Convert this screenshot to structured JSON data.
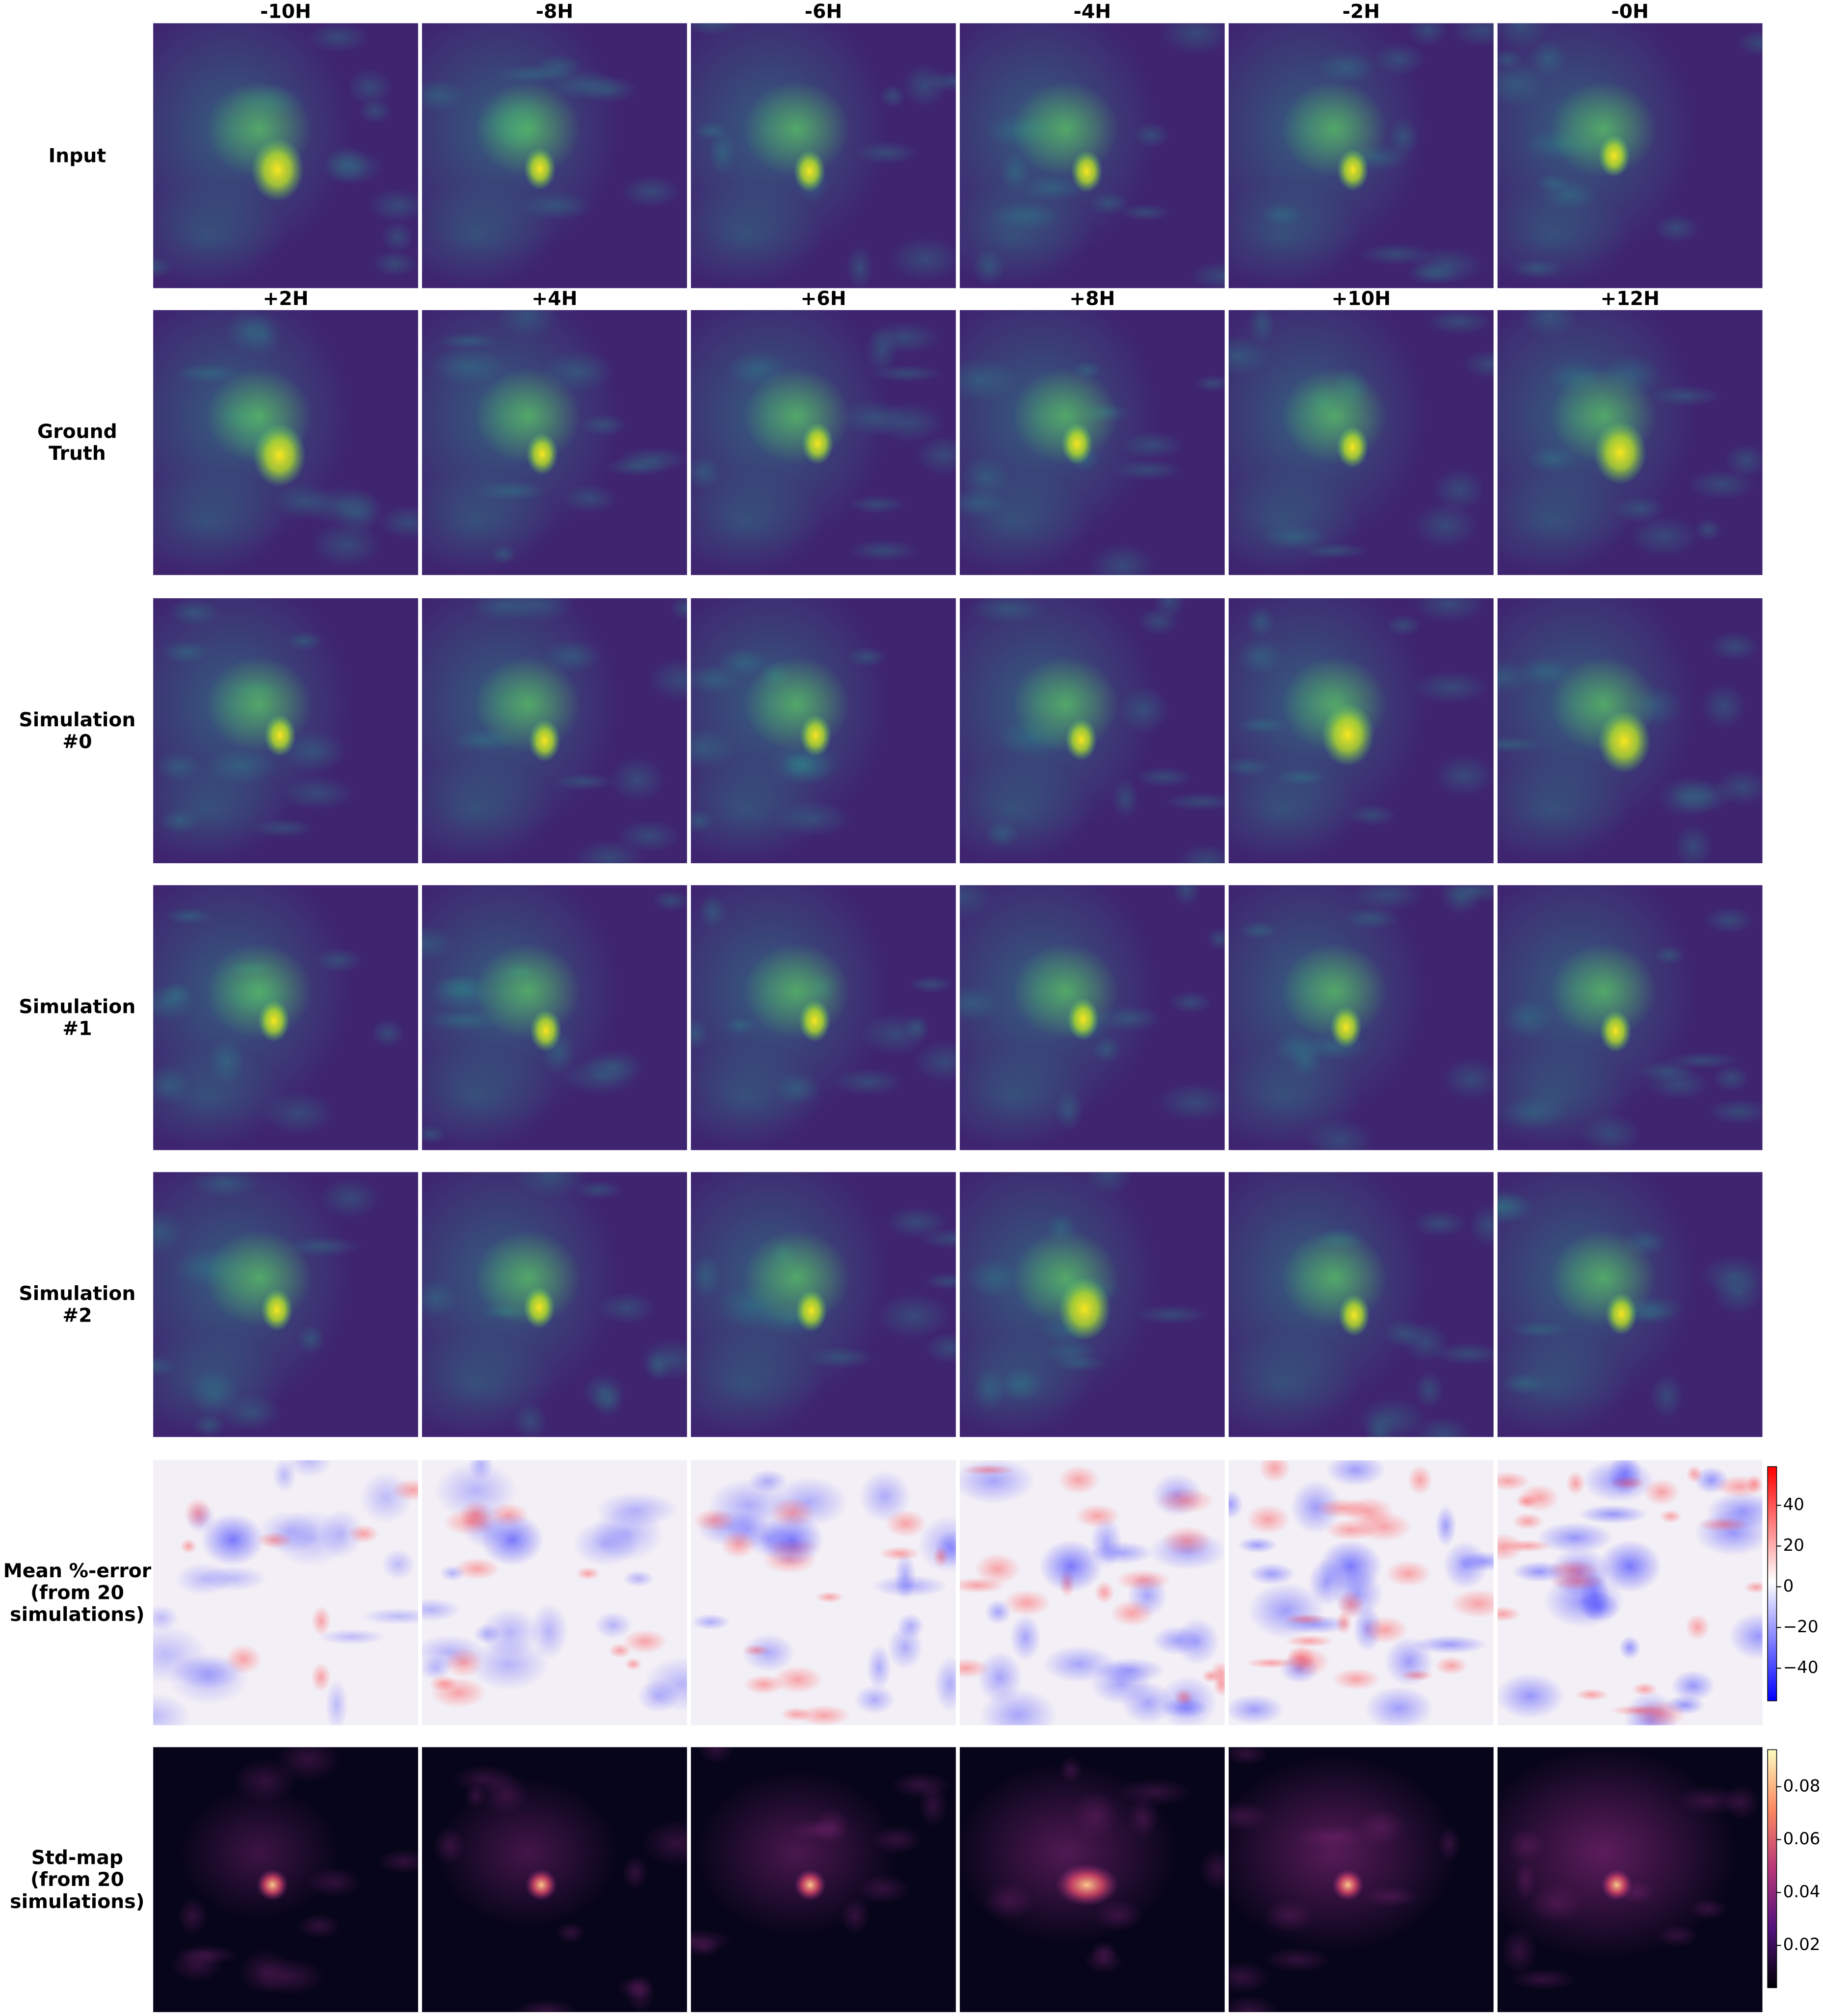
{
  "columns": [
    "-10H",
    "-8H",
    "-6H",
    "-4H",
    "-2H",
    "-0H",
    "+2H",
    "+4H",
    "+6H",
    "+8H",
    "+10H",
    "+12H"
  ],
  "rows": [
    [
      "Input"
    ],
    [
      "Ground",
      "Truth"
    ],
    [
      "Simulation",
      "#0"
    ],
    [
      "Simulation",
      "#1"
    ],
    [
      "Simulation",
      "#2"
    ],
    [
      "Mean %-error",
      "(from 20",
      "simulations)"
    ],
    [
      "Std-map",
      "(from 20",
      "simulations)"
    ]
  ],
  "colorbars": [
    {
      "lim": [
        -56,
        59
      ],
      "ticks": [
        40,
        20,
        0,
        {
          "value": -20,
          "label": "−20"
        },
        {
          "value": -40,
          "label": "−40"
        }
      ]
    },
    {
      "lim": [
        0.004,
        0.094
      ],
      "ticks": [
        0.08,
        0.06,
        0.04,
        0.02
      ]
    }
  ]
}
